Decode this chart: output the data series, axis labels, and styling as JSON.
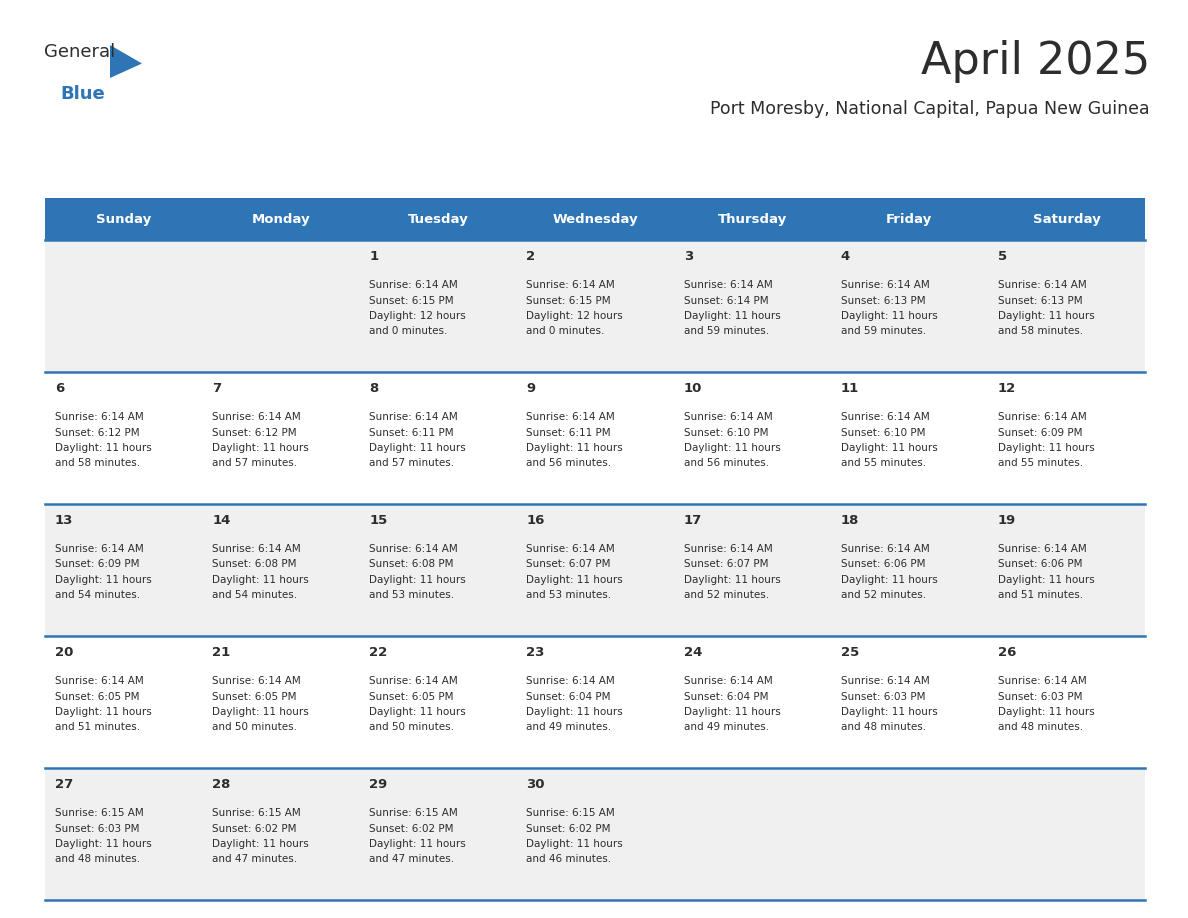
{
  "title": "April 2025",
  "subtitle": "Port Moresby, National Capital, Papua New Guinea",
  "days_of_week": [
    "Sunday",
    "Monday",
    "Tuesday",
    "Wednesday",
    "Thursday",
    "Friday",
    "Saturday"
  ],
  "header_bg_color": "#2E75B6",
  "header_text_color": "#FFFFFF",
  "odd_row_bg": "#F0F0F0",
  "even_row_bg": "#FFFFFF",
  "grid_line_color": "#2E75B6",
  "title_color": "#2D2D2D",
  "subtitle_color": "#2D2D2D",
  "day_number_color": "#2D2D2D",
  "cell_text_color": "#2D2D2D",
  "logo_general_color": "#2D2D2D",
  "logo_blue_color": "#2E75B6",
  "calendar_data": [
    {
      "day": 1,
      "col": 2,
      "row": 0,
      "sunrise": "6:14 AM",
      "sunset": "6:15 PM",
      "daylight_hours": 12,
      "daylight_minutes": 0
    },
    {
      "day": 2,
      "col": 3,
      "row": 0,
      "sunrise": "6:14 AM",
      "sunset": "6:15 PM",
      "daylight_hours": 12,
      "daylight_minutes": 0
    },
    {
      "day": 3,
      "col": 4,
      "row": 0,
      "sunrise": "6:14 AM",
      "sunset": "6:14 PM",
      "daylight_hours": 11,
      "daylight_minutes": 59
    },
    {
      "day": 4,
      "col": 5,
      "row": 0,
      "sunrise": "6:14 AM",
      "sunset": "6:13 PM",
      "daylight_hours": 11,
      "daylight_minutes": 59
    },
    {
      "day": 5,
      "col": 6,
      "row": 0,
      "sunrise": "6:14 AM",
      "sunset": "6:13 PM",
      "daylight_hours": 11,
      "daylight_minutes": 58
    },
    {
      "day": 6,
      "col": 0,
      "row": 1,
      "sunrise": "6:14 AM",
      "sunset": "6:12 PM",
      "daylight_hours": 11,
      "daylight_minutes": 58
    },
    {
      "day": 7,
      "col": 1,
      "row": 1,
      "sunrise": "6:14 AM",
      "sunset": "6:12 PM",
      "daylight_hours": 11,
      "daylight_minutes": 57
    },
    {
      "day": 8,
      "col": 2,
      "row": 1,
      "sunrise": "6:14 AM",
      "sunset": "6:11 PM",
      "daylight_hours": 11,
      "daylight_minutes": 57
    },
    {
      "day": 9,
      "col": 3,
      "row": 1,
      "sunrise": "6:14 AM",
      "sunset": "6:11 PM",
      "daylight_hours": 11,
      "daylight_minutes": 56
    },
    {
      "day": 10,
      "col": 4,
      "row": 1,
      "sunrise": "6:14 AM",
      "sunset": "6:10 PM",
      "daylight_hours": 11,
      "daylight_minutes": 56
    },
    {
      "day": 11,
      "col": 5,
      "row": 1,
      "sunrise": "6:14 AM",
      "sunset": "6:10 PM",
      "daylight_hours": 11,
      "daylight_minutes": 55
    },
    {
      "day": 12,
      "col": 6,
      "row": 1,
      "sunrise": "6:14 AM",
      "sunset": "6:09 PM",
      "daylight_hours": 11,
      "daylight_minutes": 55
    },
    {
      "day": 13,
      "col": 0,
      "row": 2,
      "sunrise": "6:14 AM",
      "sunset": "6:09 PM",
      "daylight_hours": 11,
      "daylight_minutes": 54
    },
    {
      "day": 14,
      "col": 1,
      "row": 2,
      "sunrise": "6:14 AM",
      "sunset": "6:08 PM",
      "daylight_hours": 11,
      "daylight_minutes": 54
    },
    {
      "day": 15,
      "col": 2,
      "row": 2,
      "sunrise": "6:14 AM",
      "sunset": "6:08 PM",
      "daylight_hours": 11,
      "daylight_minutes": 53
    },
    {
      "day": 16,
      "col": 3,
      "row": 2,
      "sunrise": "6:14 AM",
      "sunset": "6:07 PM",
      "daylight_hours": 11,
      "daylight_minutes": 53
    },
    {
      "day": 17,
      "col": 4,
      "row": 2,
      "sunrise": "6:14 AM",
      "sunset": "6:07 PM",
      "daylight_hours": 11,
      "daylight_minutes": 52
    },
    {
      "day": 18,
      "col": 5,
      "row": 2,
      "sunrise": "6:14 AM",
      "sunset": "6:06 PM",
      "daylight_hours": 11,
      "daylight_minutes": 52
    },
    {
      "day": 19,
      "col": 6,
      "row": 2,
      "sunrise": "6:14 AM",
      "sunset": "6:06 PM",
      "daylight_hours": 11,
      "daylight_minutes": 51
    },
    {
      "day": 20,
      "col": 0,
      "row": 3,
      "sunrise": "6:14 AM",
      "sunset": "6:05 PM",
      "daylight_hours": 11,
      "daylight_minutes": 51
    },
    {
      "day": 21,
      "col": 1,
      "row": 3,
      "sunrise": "6:14 AM",
      "sunset": "6:05 PM",
      "daylight_hours": 11,
      "daylight_minutes": 50
    },
    {
      "day": 22,
      "col": 2,
      "row": 3,
      "sunrise": "6:14 AM",
      "sunset": "6:05 PM",
      "daylight_hours": 11,
      "daylight_minutes": 50
    },
    {
      "day": 23,
      "col": 3,
      "row": 3,
      "sunrise": "6:14 AM",
      "sunset": "6:04 PM",
      "daylight_hours": 11,
      "daylight_minutes": 49
    },
    {
      "day": 24,
      "col": 4,
      "row": 3,
      "sunrise": "6:14 AM",
      "sunset": "6:04 PM",
      "daylight_hours": 11,
      "daylight_minutes": 49
    },
    {
      "day": 25,
      "col": 5,
      "row": 3,
      "sunrise": "6:14 AM",
      "sunset": "6:03 PM",
      "daylight_hours": 11,
      "daylight_minutes": 48
    },
    {
      "day": 26,
      "col": 6,
      "row": 3,
      "sunrise": "6:14 AM",
      "sunset": "6:03 PM",
      "daylight_hours": 11,
      "daylight_minutes": 48
    },
    {
      "day": 27,
      "col": 0,
      "row": 4,
      "sunrise": "6:15 AM",
      "sunset": "6:03 PM",
      "daylight_hours": 11,
      "daylight_minutes": 48
    },
    {
      "day": 28,
      "col": 1,
      "row": 4,
      "sunrise": "6:15 AM",
      "sunset": "6:02 PM",
      "daylight_hours": 11,
      "daylight_minutes": 47
    },
    {
      "day": 29,
      "col": 2,
      "row": 4,
      "sunrise": "6:15 AM",
      "sunset": "6:02 PM",
      "daylight_hours": 11,
      "daylight_minutes": 47
    },
    {
      "day": 30,
      "col": 3,
      "row": 4,
      "sunrise": "6:15 AM",
      "sunset": "6:02 PM",
      "daylight_hours": 11,
      "daylight_minutes": 46
    }
  ]
}
